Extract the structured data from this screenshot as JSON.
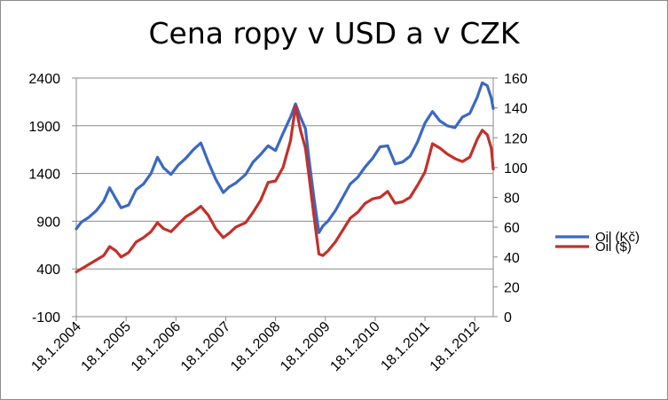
{
  "chart_data": {
    "type": "line",
    "title": "Cena ropy v USD a v CZK",
    "xlabel": "",
    "ylabel": "",
    "y_left": {
      "lim": [
        -100,
        2400
      ],
      "ticks": [
        "2400",
        "1900",
        "1400",
        "900",
        "400",
        "-100"
      ]
    },
    "y_right": {
      "lim": [
        0,
        160
      ],
      "ticks": [
        "160",
        "140",
        "120",
        "100",
        "80",
        "60",
        "40",
        "20",
        "0"
      ]
    },
    "x_tick_labels": [
      "18.1.2004",
      "18.1.2005",
      "18.1.2006",
      "18.1.2007",
      "18.1.2008",
      "18.1.2009",
      "18.1.2010",
      "18.1.2011",
      "18.1.2012"
    ],
    "x_range_years": [
      2004.05,
      2012.42
    ],
    "grid": "horizontal",
    "legend_position": "right",
    "series": [
      {
        "name": "Oil (Kč)",
        "axis": "left",
        "color": "#3a68c4",
        "points": [
          [
            2004.05,
            820
          ],
          [
            2004.15,
            890
          ],
          [
            2004.3,
            940
          ],
          [
            2004.45,
            1010
          ],
          [
            2004.6,
            1110
          ],
          [
            2004.72,
            1250
          ],
          [
            2004.85,
            1130
          ],
          [
            2004.95,
            1040
          ],
          [
            2005.1,
            1070
          ],
          [
            2005.25,
            1230
          ],
          [
            2005.4,
            1290
          ],
          [
            2005.55,
            1400
          ],
          [
            2005.68,
            1570
          ],
          [
            2005.8,
            1460
          ],
          [
            2005.95,
            1390
          ],
          [
            2006.1,
            1490
          ],
          [
            2006.25,
            1560
          ],
          [
            2006.4,
            1650
          ],
          [
            2006.55,
            1720
          ],
          [
            2006.7,
            1520
          ],
          [
            2006.85,
            1340
          ],
          [
            2007.0,
            1200
          ],
          [
            2007.12,
            1260
          ],
          [
            2007.25,
            1300
          ],
          [
            2007.45,
            1390
          ],
          [
            2007.6,
            1520
          ],
          [
            2007.75,
            1600
          ],
          [
            2007.9,
            1690
          ],
          [
            2008.05,
            1640
          ],
          [
            2008.2,
            1820
          ],
          [
            2008.35,
            1990
          ],
          [
            2008.45,
            2130
          ],
          [
            2008.55,
            1990
          ],
          [
            2008.65,
            1870
          ],
          [
            2008.72,
            1560
          ],
          [
            2008.82,
            1150
          ],
          [
            2008.92,
            780
          ],
          [
            2009.0,
            850
          ],
          [
            2009.1,
            900
          ],
          [
            2009.25,
            1010
          ],
          [
            2009.4,
            1150
          ],
          [
            2009.55,
            1290
          ],
          [
            2009.7,
            1360
          ],
          [
            2009.85,
            1470
          ],
          [
            2010.0,
            1560
          ],
          [
            2010.15,
            1680
          ],
          [
            2010.3,
            1690
          ],
          [
            2010.45,
            1500
          ],
          [
            2010.6,
            1520
          ],
          [
            2010.75,
            1580
          ],
          [
            2010.9,
            1730
          ],
          [
            2011.05,
            1930
          ],
          [
            2011.2,
            2050
          ],
          [
            2011.35,
            1950
          ],
          [
            2011.5,
            1900
          ],
          [
            2011.65,
            1880
          ],
          [
            2011.8,
            1990
          ],
          [
            2011.95,
            2030
          ],
          [
            2012.1,
            2200
          ],
          [
            2012.2,
            2350
          ],
          [
            2012.3,
            2320
          ],
          [
            2012.38,
            2190
          ],
          [
            2012.42,
            2080
          ]
        ]
      },
      {
        "name": "Oil ($)",
        "axis": "right",
        "color": "#c3302a",
        "points": [
          [
            2004.05,
            30
          ],
          [
            2004.15,
            32
          ],
          [
            2004.3,
            35
          ],
          [
            2004.45,
            38
          ],
          [
            2004.6,
            41
          ],
          [
            2004.72,
            47
          ],
          [
            2004.85,
            44
          ],
          [
            2004.95,
            40
          ],
          [
            2005.1,
            43
          ],
          [
            2005.25,
            50
          ],
          [
            2005.4,
            53
          ],
          [
            2005.55,
            57
          ],
          [
            2005.68,
            63
          ],
          [
            2005.8,
            59
          ],
          [
            2005.95,
            57
          ],
          [
            2006.1,
            62
          ],
          [
            2006.25,
            67
          ],
          [
            2006.4,
            70
          ],
          [
            2006.55,
            74
          ],
          [
            2006.7,
            68
          ],
          [
            2006.85,
            59
          ],
          [
            2007.0,
            53
          ],
          [
            2007.12,
            56
          ],
          [
            2007.25,
            60
          ],
          [
            2007.45,
            63
          ],
          [
            2007.6,
            70
          ],
          [
            2007.75,
            78
          ],
          [
            2007.9,
            90
          ],
          [
            2008.05,
            91
          ],
          [
            2008.2,
            100
          ],
          [
            2008.35,
            118
          ],
          [
            2008.45,
            141
          ],
          [
            2008.55,
            125
          ],
          [
            2008.65,
            113
          ],
          [
            2008.72,
            95
          ],
          [
            2008.82,
            68
          ],
          [
            2008.92,
            42
          ],
          [
            2009.0,
            41
          ],
          [
            2009.1,
            44
          ],
          [
            2009.25,
            50
          ],
          [
            2009.4,
            58
          ],
          [
            2009.55,
            66
          ],
          [
            2009.7,
            70
          ],
          [
            2009.85,
            76
          ],
          [
            2010.0,
            79
          ],
          [
            2010.15,
            80
          ],
          [
            2010.3,
            84
          ],
          [
            2010.45,
            76
          ],
          [
            2010.6,
            77
          ],
          [
            2010.75,
            80
          ],
          [
            2010.9,
            88
          ],
          [
            2011.05,
            97
          ],
          [
            2011.2,
            116
          ],
          [
            2011.35,
            113
          ],
          [
            2011.5,
            109
          ],
          [
            2011.65,
            106
          ],
          [
            2011.8,
            104
          ],
          [
            2011.95,
            107
          ],
          [
            2012.1,
            119
          ],
          [
            2012.2,
            125
          ],
          [
            2012.3,
            122
          ],
          [
            2012.38,
            113
          ],
          [
            2012.42,
            99
          ]
        ]
      }
    ]
  }
}
